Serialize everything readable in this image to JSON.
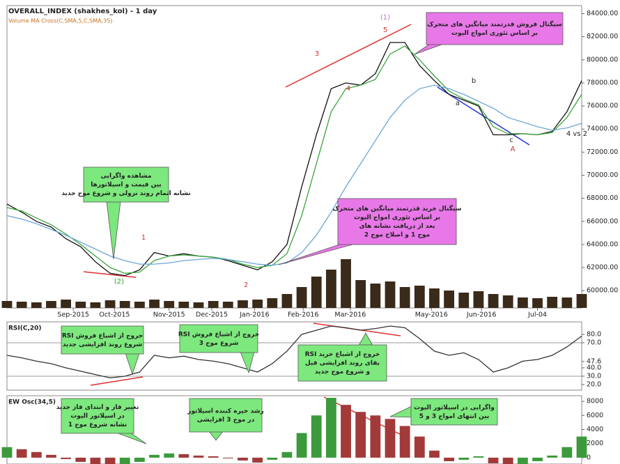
{
  "chart_data": [
    {
      "type": "line",
      "title": "OVERALL_INDEX (shakhes_kol) - 1 day",
      "subtitle": "Volume MA Cross(C,SMA,5,C,SMA,35)",
      "xlim": [
        0,
        39
      ],
      "xticks": [
        {
          "value": 4.5,
          "label": "Sep-2015"
        },
        {
          "value": 7.3,
          "label": "Oct-2015"
        },
        {
          "value": 11,
          "label": "Nov-2015"
        },
        {
          "value": 13.9,
          "label": "Dec-2015"
        },
        {
          "value": 16.8,
          "label": "Jan-2016"
        },
        {
          "value": 20.1,
          "label": "Feb-2016"
        },
        {
          "value": 23.3,
          "label": "Mar-2016"
        },
        {
          "value": 28.8,
          "label": "May-2016"
        },
        {
          "value": 32.2,
          "label": "Jun-2016"
        },
        {
          "value": 36,
          "label": "Jul-04"
        }
      ],
      "ylim": [
        58500,
        84700
      ],
      "yticks": [
        {
          "value": 60000,
          "label": "60000.00"
        },
        {
          "value": 62000,
          "label": "62000.00"
        },
        {
          "value": 64000,
          "label": "64000.00"
        },
        {
          "value": 66000,
          "label": "66000.00"
        },
        {
          "value": 68000,
          "label": "68000.00"
        },
        {
          "value": 70000,
          "label": "70000.00"
        },
        {
          "value": 72000,
          "label": "72000.00"
        },
        {
          "value": 74000,
          "label": "74000.00"
        },
        {
          "value": 76000,
          "label": "76000.00"
        },
        {
          "value": 78000,
          "label": "78000.00"
        },
        {
          "value": 80000,
          "label": "80000.00"
        },
        {
          "value": 82000,
          "label": "82000.00"
        },
        {
          "value": 84000,
          "label": "84000.00"
        }
      ],
      "series": [
        {
          "color": "#111111",
          "values": [
            67500,
            66800,
            66000,
            65500,
            64500,
            63800,
            62500,
            61500,
            61300,
            61800,
            63300,
            63000,
            63200,
            63000,
            62900,
            62600,
            62200,
            61800,
            62500,
            64000,
            69000,
            73500,
            77500,
            78000,
            77800,
            78800,
            81500,
            81500,
            79500,
            78200,
            77000,
            76500,
            76000,
            73500,
            73500,
            73600,
            73500,
            73800,
            75500,
            78200
          ]
        },
        {
          "color": "#3aa53a",
          "values": [
            67200,
            66900,
            66300,
            65700,
            64900,
            64000,
            63000,
            62000,
            61500,
            61600,
            62600,
            63000,
            63100,
            63000,
            62900,
            62700,
            62300,
            62000,
            62200,
            63200,
            66500,
            71000,
            75500,
            77500,
            77800,
            78300,
            80500,
            81200,
            80000,
            78600,
            77300,
            76600,
            76100,
            74200,
            73600,
            73600,
            73500,
            73700,
            75000,
            77000
          ]
        },
        {
          "color": "#6aa6d6",
          "values": [
            66500,
            66200,
            65800,
            65300,
            64800,
            64200,
            63600,
            63000,
            62600,
            62300,
            62300,
            62400,
            62600,
            62700,
            62800,
            62700,
            62500,
            62300,
            62200,
            62400,
            63300,
            64800,
            66800,
            69000,
            71000,
            73000,
            75000,
            76500,
            77500,
            77800,
            77500,
            77000,
            76400,
            75800,
            75000,
            74600,
            74200,
            73900,
            74100,
            74500
          ]
        }
      ],
      "volume_color": "#3a2a1a",
      "volume_values": [
        10,
        9,
        8,
        10,
        12,
        9,
        8,
        11,
        10,
        9,
        12,
        10,
        9,
        8,
        10,
        9,
        11,
        12,
        14,
        20,
        30,
        45,
        55,
        70,
        40,
        35,
        38,
        30,
        32,
        28,
        25,
        22,
        24,
        20,
        18,
        15,
        14,
        16,
        15,
        20
      ],
      "wave_labels": [
        "(1)",
        "5",
        "3",
        "4",
        "1",
        "2",
        "(2)",
        "A",
        "4 vs 2",
        "a",
        "b",
        "c"
      ],
      "callouts": [
        {
          "lines": [
            "مشاهده واگرایی",
            "بین قیمت و اسیلاتورها",
            "نشانه اتمام روند نزولی و شروع موج جدید"
          ]
        },
        {
          "lines": [
            "سیگنال فروش قدرتمند میانگین های متحرک",
            "بر اساس تئوری امواج الیوت"
          ]
        },
        {
          "lines": [
            "سیگنال خرید قدرتمند میانگین های متحرک",
            "بر اساس تئوری امواج الیوت",
            "بعد از دریافت نشانه های",
            "موج 1 و اصلاح موج 2"
          ]
        }
      ]
    },
    {
      "type": "line",
      "title": "RSI(C,20)",
      "xlim": [
        0,
        39
      ],
      "ylim": [
        13.3,
        95
      ],
      "yticks": [
        {
          "value": 20,
          "label": "20.0"
        },
        {
          "value": 30,
          "label": "30.0"
        },
        {
          "value": 40,
          "label": "40.0"
        },
        {
          "value": 47.6,
          "label": "47.6"
        },
        {
          "value": 70,
          "label": "70.0"
        },
        {
          "value": 80,
          "label": "80.0"
        }
      ],
      "levels": [
        30,
        70
      ],
      "series": [
        {
          "color": "#333333",
          "values": [
            55,
            52,
            48,
            45,
            40,
            36,
            32,
            28,
            30,
            35,
            55,
            52,
            54,
            50,
            48,
            45,
            40,
            35,
            45,
            60,
            80,
            85,
            90,
            88,
            85,
            87,
            90,
            88,
            75,
            60,
            55,
            58,
            50,
            35,
            40,
            48,
            50,
            55,
            65,
            78
          ]
        }
      ],
      "callouts": [
        {
          "lines": [
            "خروج از اشباع فروش RSI",
            "شروع روند افزایشی جدید"
          ]
        },
        {
          "lines": [
            "خروج از اشباع فروش RSI",
            "شروع موج 3"
          ]
        },
        {
          "lines": [
            "خروج از اشباع خرید RSI",
            "بقای روند افزایشی قبل",
            "و شروع موج جدید"
          ]
        }
      ]
    },
    {
      "type": "bar",
      "title": "EW Osc(34,5)",
      "xlim": [
        0,
        39
      ],
      "ylim": [
        -900,
        8800
      ],
      "yticks": [
        0,
        2000,
        4000,
        6000,
        8000
      ],
      "up_color": "#3c9a3c",
      "down_color": "#a33a3a",
      "values": [
        1500,
        1200,
        800,
        400,
        -200,
        -600,
        -1000,
        -1300,
        -1200,
        -600,
        400,
        600,
        500,
        300,
        200,
        -100,
        -400,
        -700,
        -300,
        800,
        3500,
        6000,
        8500,
        7500,
        6500,
        6000,
        5500,
        4500,
        3000,
        1000,
        -500,
        -300,
        200,
        -800,
        -1200,
        -900,
        -500,
        300,
        1500,
        3000
      ],
      "callouts": [
        {
          "lines": [
            "تغییر فاز و ابتدای فاز جدید",
            "در اسیلاتور الیوت",
            "نشانه شروع موج 1"
          ]
        },
        {
          "lines": [
            "رشد خیره کننده اسیلاتور",
            "در موج 3 افزایشی"
          ]
        },
        {
          "lines": [
            "واگرایی در اسیلاتور الیوت",
            "بین انتهای امواج 3 و 5"
          ]
        }
      ]
    }
  ]
}
